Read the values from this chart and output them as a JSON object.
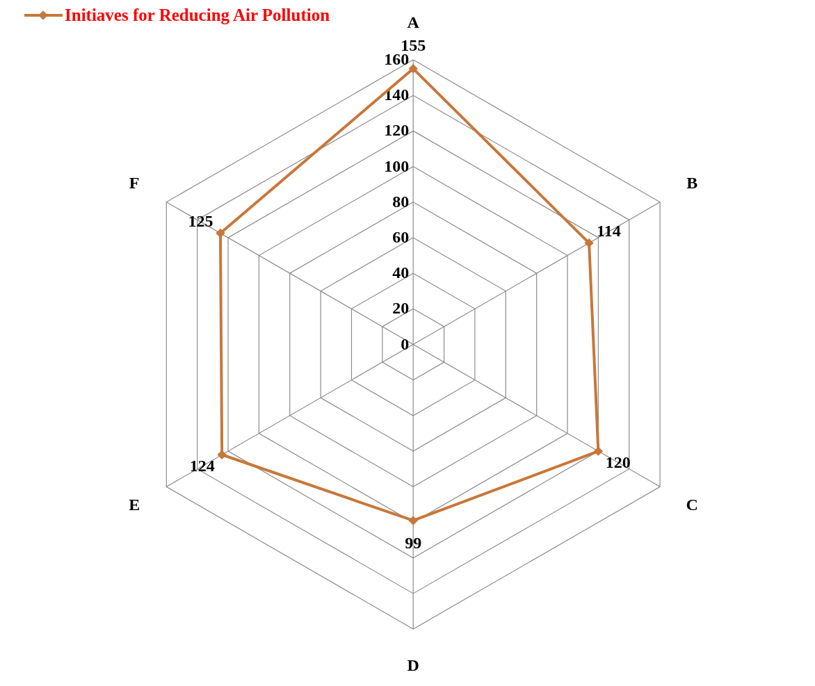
{
  "chart_data": {
    "type": "radar",
    "categories": [
      "A",
      "B",
      "C",
      "D",
      "E",
      "F"
    ],
    "series": [
      {
        "name": "Initiaves for Reducing Air Pollution",
        "color": "#c8773a",
        "values": [
          155,
          114,
          120,
          99,
          124,
          125
        ]
      }
    ],
    "ylim": [
      0,
      160
    ],
    "yticks": [
      0,
      20,
      40,
      60,
      80,
      100,
      120,
      140,
      160
    ],
    "grid": true,
    "legend": "top left",
    "marker": "diamond",
    "data_labels": true
  }
}
